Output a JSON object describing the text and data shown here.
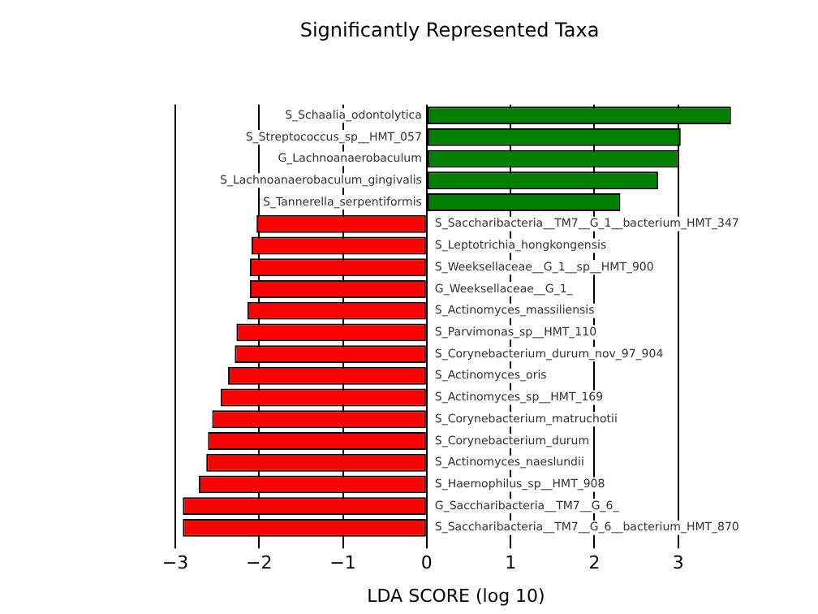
{
  "chart_data": {
    "type": "bar",
    "orientation": "horizontal",
    "title": "Significantly Represented Taxa",
    "xlabel": "LDA SCORE (log 10)",
    "categories": [
      "S_Schaalia_odontolytica",
      "S_Streptococcus_sp__HMT_057",
      "G_Lachnoanaerobaculum",
      "S_Lachnoanaerobaculum_gingivalis",
      "S_Tannerella_serpentiformis",
      "S_Saccharibacteria__TM7__G_1__bacterium_HMT_347",
      "S_Leptotrichia_hongkongensis",
      "S_Weeksellaceae__G_1__sp__HMT_900",
      "G_Weeksellaceae__G_1_",
      "S_Actinomyces_massiliensis",
      "S_Parvimonas_sp__HMT_110",
      "S_Corynebacterium_durum_nov_97_904",
      "S_Actinomyces_oris",
      "S_Actinomyces_sp__HMT_169",
      "S_Corynebacterium_matruchotii",
      "S_Corynebacterium_durum",
      "S_Actinomyces_naeslundii",
      "S_Haemophilus_sp__HMT_908",
      "G_Saccharibacteria__TM7__G_6_",
      "S_Saccharibacteria__TM7__G_6__bacterium_HMT_870"
    ],
    "values": [
      3.63,
      3.03,
      3.01,
      2.76,
      2.31,
      -2.03,
      -2.09,
      -2.11,
      -2.11,
      -2.14,
      -2.27,
      -2.29,
      -2.37,
      -2.46,
      -2.56,
      -2.61,
      -2.63,
      -2.72,
      -2.91,
      -2.91
    ],
    "colors": [
      "#008000",
      "#008000",
      "#008000",
      "#008000",
      "#008000",
      "#ff0000",
      "#ff0000",
      "#ff0000",
      "#ff0000",
      "#ff0000",
      "#ff0000",
      "#ff0000",
      "#ff0000",
      "#ff0000",
      "#ff0000",
      "#ff0000",
      "#ff0000",
      "#ff0000",
      "#ff0000",
      "#ff0000"
    ],
    "xlim": [
      -3,
      3.7
    ],
    "xticks": [
      {
        "value": -3,
        "label": "−3"
      },
      {
        "value": -2,
        "label": "−2"
      },
      {
        "value": -1,
        "label": "−1"
      },
      0,
      1,
      2,
      3
    ],
    "grid": "x",
    "tick_labels": "x",
    "legend": false
  }
}
